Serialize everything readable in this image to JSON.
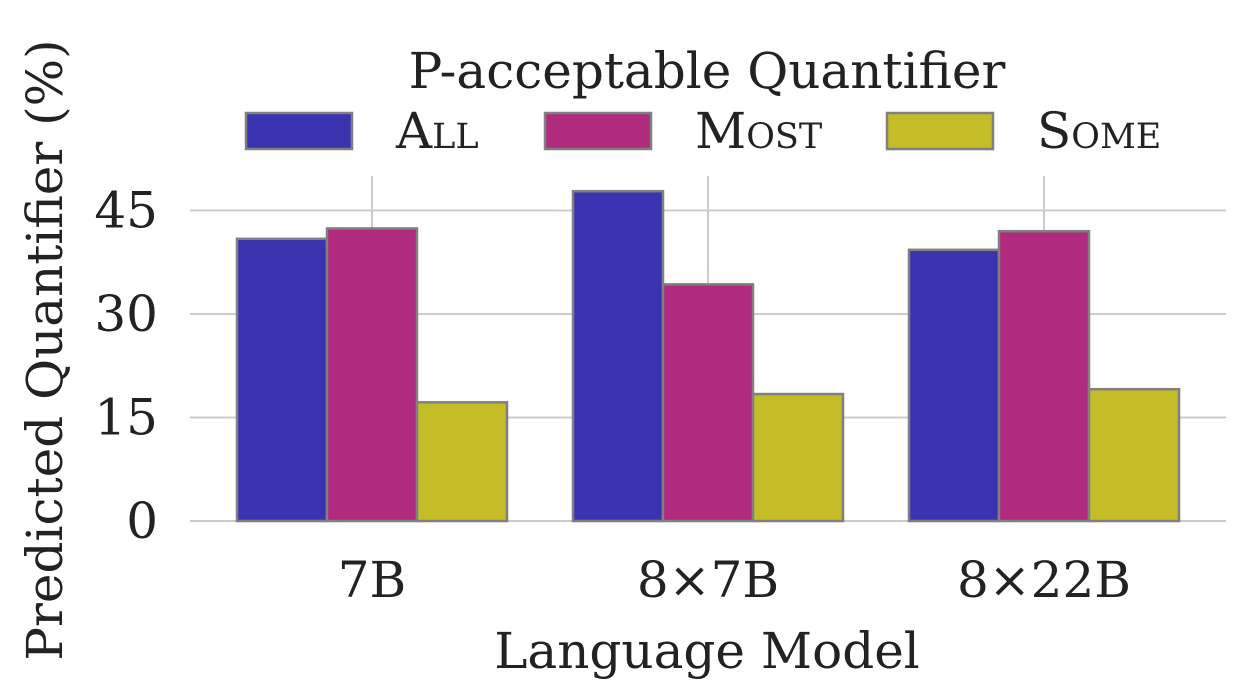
{
  "chart_data": {
    "type": "bar",
    "legend_title": "P-acceptable Quantifier",
    "legend_placement": "top",
    "xlabel": "Language Model",
    "ylabel": "Predicted Quantifier (%)",
    "categories": [
      "7B",
      "8×7B",
      "8×22B"
    ],
    "series": [
      {
        "name": "All",
        "color": "#3a33b0",
        "values": [
          40.9,
          47.8,
          39.3
        ]
      },
      {
        "name": "Most",
        "color": "#b02a7e",
        "values": [
          42.4,
          34.3,
          42.0
        ]
      },
      {
        "name": "Some",
        "color": "#c4bd28",
        "values": [
          17.2,
          18.4,
          19.1
        ]
      }
    ],
    "yticks": [
      0,
      15,
      30,
      45
    ],
    "ylim": [
      0,
      50
    ],
    "grid": true
  }
}
